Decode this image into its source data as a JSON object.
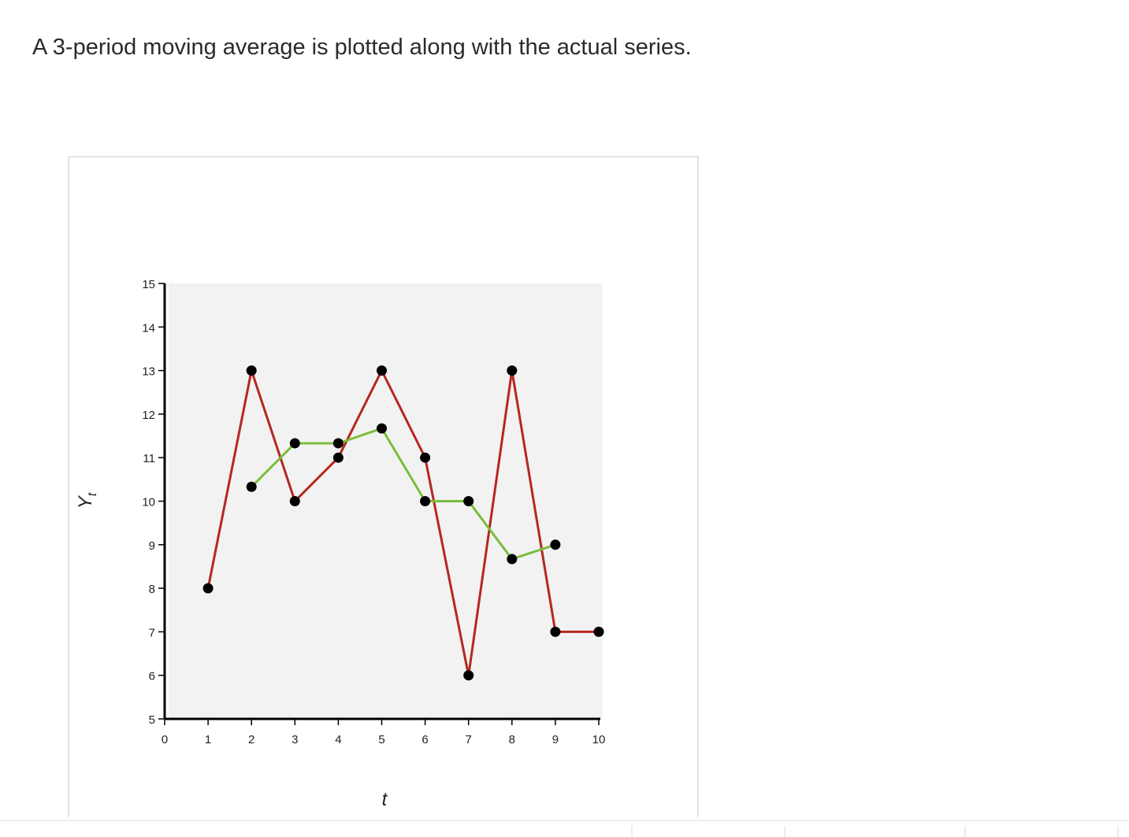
{
  "question": {
    "text": "A 3-period moving average is plotted along with the actual series."
  },
  "colors": {
    "actual_series": "#b5271f",
    "moving_average": "#7bbd3a",
    "markers": "#000000",
    "plot_background": "#f2f2f2"
  },
  "chart_data": {
    "type": "line",
    "title": "",
    "xlabel": "t",
    "ylabel": "Y",
    "ylabel_subscript": "t",
    "xlim": [
      0,
      10
    ],
    "ylim": [
      5,
      15
    ],
    "xticks": [
      0,
      1,
      2,
      3,
      4,
      5,
      6,
      7,
      8,
      9,
      10
    ],
    "yticks": [
      5,
      6,
      7,
      8,
      9,
      10,
      11,
      12,
      13,
      14,
      15
    ],
    "grid": false,
    "legend": "none",
    "series": [
      {
        "key": "actual",
        "color": "#b5271f",
        "x": [
          1,
          2,
          3,
          4,
          5,
          6,
          7,
          8,
          9,
          10
        ],
        "y": [
          8,
          13,
          10,
          11,
          13,
          11,
          6,
          13,
          7,
          7
        ]
      },
      {
        "key": "moving_average",
        "color": "#7bbd3a",
        "x": [
          2,
          3,
          4,
          5,
          6,
          7,
          8,
          9
        ],
        "y": [
          10.33,
          11.33,
          11.33,
          11.67,
          10,
          10,
          8.67,
          9
        ]
      }
    ]
  }
}
